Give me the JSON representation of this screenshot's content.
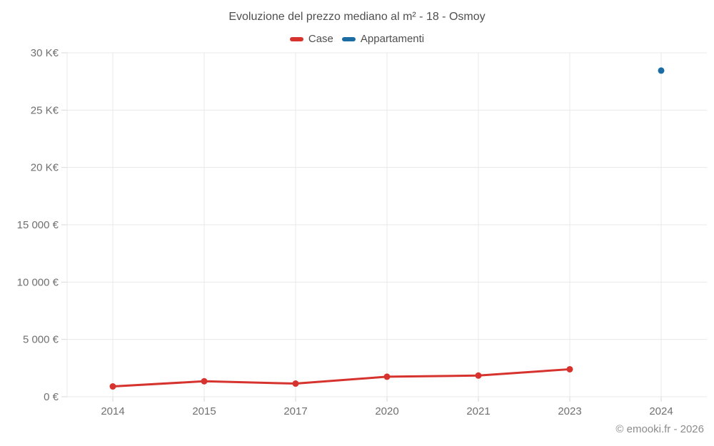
{
  "title": "Evoluzione del prezzo mediano al m² - 18 - Osmoy",
  "footer": "© emooki.fr - 2026",
  "colors": {
    "case": "#d7332e",
    "appartamenti": "#1b6ca3",
    "grid": "#e8e8e8",
    "axis": "#d9d9d9",
    "axis_text": "#707070",
    "title_text": "#4f4f4f",
    "footer_text": "#8c8c8c"
  },
  "chart_data": {
    "type": "line",
    "title": "Evoluzione del prezzo mediano al m² - 18 - Osmoy",
    "categories": [
      "2014",
      "2015",
      "2017",
      "2020",
      "2021",
      "2023",
      "2024"
    ],
    "series": [
      {
        "name": "Case",
        "color": "#d7332e",
        "marker": "circle",
        "values": [
          900,
          1350,
          1150,
          1750,
          1850,
          2400,
          null
        ]
      },
      {
        "name": "Appartamenti",
        "color": "#1b6ca3",
        "marker": "circle",
        "values": [
          null,
          null,
          null,
          null,
          null,
          null,
          28450
        ]
      }
    ],
    "xlabel": "",
    "ylabel": "",
    "ylim": [
      0,
      30000
    ],
    "ytick_values": [
      0,
      5000,
      10000,
      15000,
      20000,
      25000,
      30000
    ],
    "ytick_labels": [
      "0 €",
      "5 000 €",
      "10 000 €",
      "15 000 €",
      "20 K€",
      "25 K€",
      "30 K€"
    ],
    "grid": "horizontal+vertical",
    "legend_position": "top-center"
  }
}
